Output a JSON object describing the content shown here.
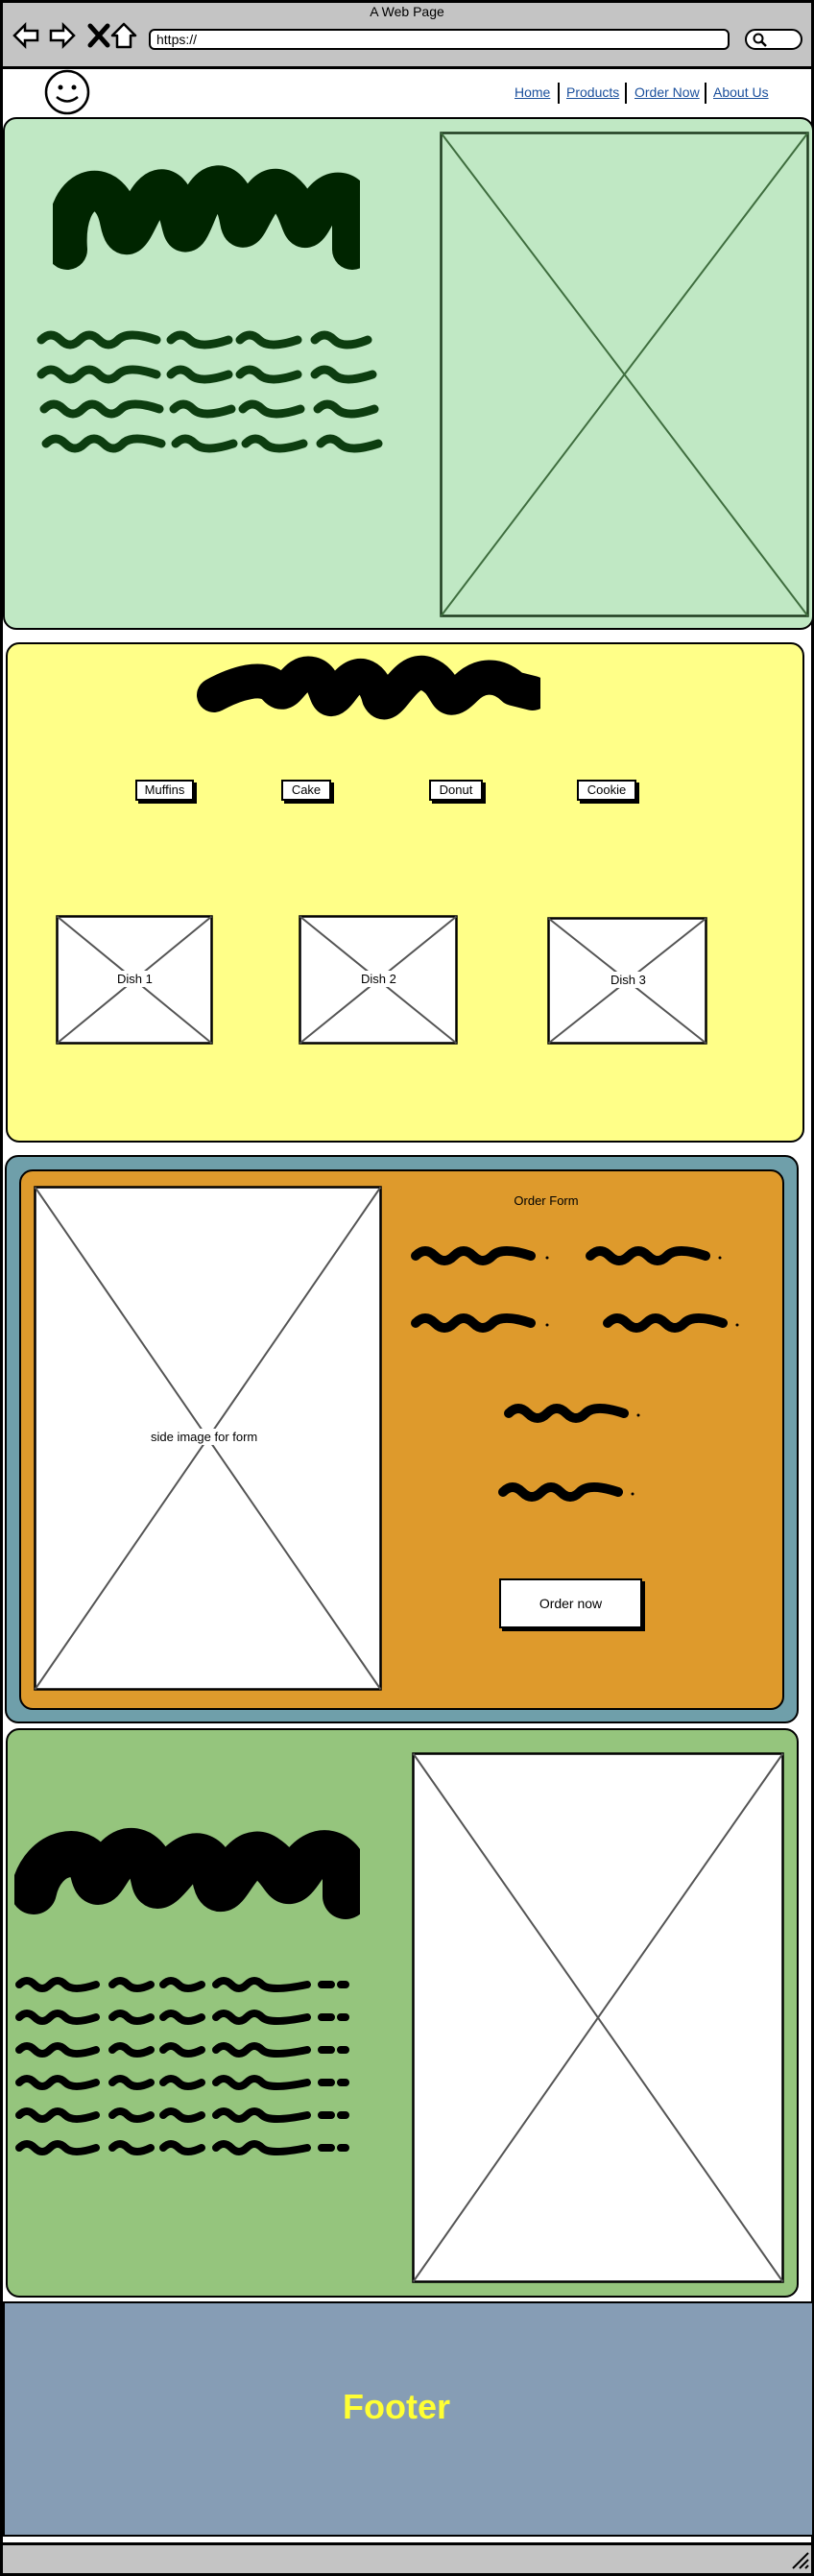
{
  "browser": {
    "window_title": "A Web Page",
    "url": "https://",
    "back_icon": "back-arrow-icon",
    "forward_icon": "forward-arrow-icon",
    "close_icon": "close-x-icon",
    "home_icon": "home-icon",
    "search_icon": "search-icon"
  },
  "header": {
    "logo_icon": "smiley-face-icon",
    "nav": [
      "Home",
      "Products",
      "Order Now",
      "About Us"
    ]
  },
  "products": {
    "buttons": [
      "Muffins",
      "Cake",
      "Donut",
      "Cookie"
    ],
    "dishes": [
      "Dish 1",
      "Dish 2",
      "Dish 3"
    ]
  },
  "order": {
    "image_label": "side image for form",
    "form_title": "Order Form",
    "submit_label": "Order now"
  },
  "footer": {
    "label": "Footer"
  },
  "colors": {
    "hero_bg": "#c0e8c4",
    "products_bg": "#ffff88",
    "order_outer_bg": "#6f9faa",
    "order_inner_bg": "#de9a2c",
    "about_bg": "#95c57d",
    "footer_bg": "#869db5",
    "footer_text": "#ffff33",
    "chrome_bg": "#c4c4c4"
  }
}
